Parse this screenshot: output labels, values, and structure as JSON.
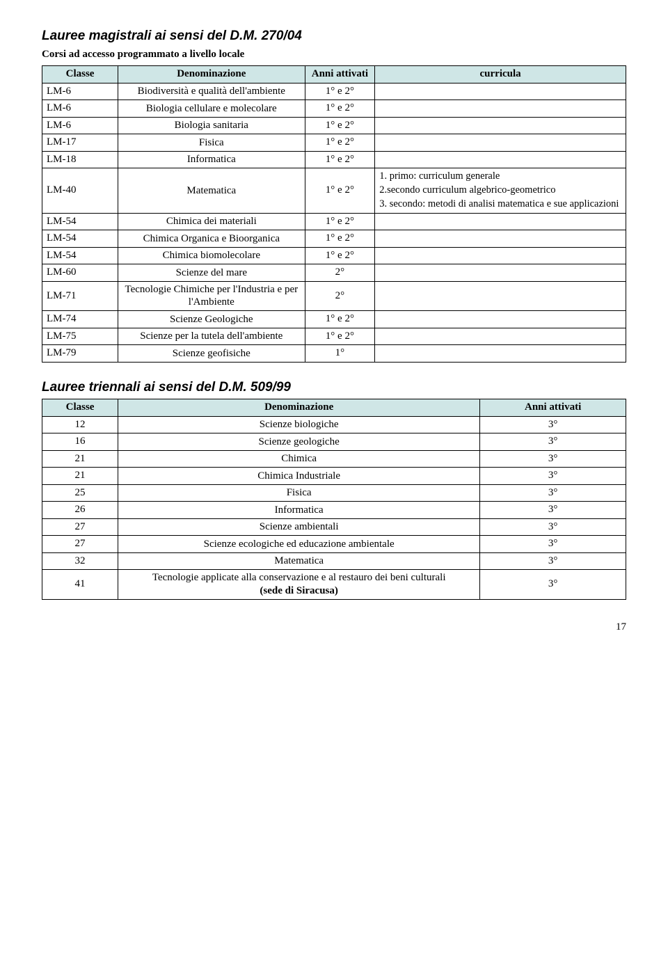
{
  "heading1": "Lauree magistrali ai sensi del D.M. 270/04",
  "subheading1": "Corsi ad accesso programmato a livello locale",
  "table1": {
    "headers": {
      "classe": "Classe",
      "denom": "Denominazione",
      "anni": "Anni attivati",
      "curr": "curricula"
    },
    "rows": [
      {
        "classe": "LM-6",
        "denom": "Biodiversità e qualità dell'ambiente",
        "anni": "1° e 2°",
        "curr": []
      },
      {
        "classe": "LM-6",
        "denom": "Biologia cellulare e molecolare",
        "anni": "1° e 2°",
        "curr": []
      },
      {
        "classe": "LM-6",
        "denom": "Biologia sanitaria",
        "anni": "1° e 2°",
        "curr": []
      },
      {
        "classe": "LM-17",
        "denom": "Fisica",
        "anni": "1° e 2°",
        "curr": []
      },
      {
        "classe": "LM-18",
        "denom": "Informatica",
        "anni": "1° e 2°",
        "curr": []
      },
      {
        "classe": "LM-40",
        "denom": "Matematica",
        "anni": "1° e 2°",
        "curr": [
          "1. primo: curriculum generale",
          "2.secondo  curriculum algebrico-geometrico",
          "3. secondo: metodi di analisi matematica e sue applicazioni"
        ]
      },
      {
        "classe": "LM-54",
        "denom": "Chimica dei materiali",
        "anni": "1° e 2°",
        "curr": []
      },
      {
        "classe": "LM-54",
        "denom": "Chimica Organica e Bioorganica",
        "anni": "1° e 2°",
        "curr": []
      },
      {
        "classe": "LM-54",
        "denom": "Chimica biomolecolare",
        "anni": "1° e 2°",
        "curr": []
      },
      {
        "classe": "LM-60",
        "denom": "Scienze del mare",
        "anni": "2°",
        "curr": []
      },
      {
        "classe": "LM-71",
        "denom": "Tecnologie Chimiche per l'Industria e per l'Ambiente",
        "anni": "2°",
        "curr": []
      },
      {
        "classe": "LM-74",
        "denom": "Scienze Geologiche",
        "anni": "1° e 2°",
        "curr": []
      },
      {
        "classe": "LM-75",
        "denom": "Scienze per la tutela dell'ambiente",
        "anni": "1° e 2°",
        "curr": []
      },
      {
        "classe": "LM-79",
        "denom": "Scienze geofisiche",
        "anni": "1°",
        "curr": []
      }
    ]
  },
  "heading2": "Lauree triennali ai sensi del D.M. 509/99",
  "table2": {
    "headers": {
      "classe": "Classe",
      "denom": "Denominazione",
      "anni": "Anni attivati"
    },
    "rows": [
      {
        "classe": "12",
        "denom": "Scienze biologiche",
        "anni": "3°"
      },
      {
        "classe": "16",
        "denom": "Scienze geologiche",
        "anni": "3°"
      },
      {
        "classe": "21",
        "denom": "Chimica",
        "anni": "3°"
      },
      {
        "classe": "21",
        "denom": "Chimica Industriale",
        "anni": "3°"
      },
      {
        "classe": "25",
        "denom": "Fisica",
        "anni": "3°"
      },
      {
        "classe": "26",
        "denom": "Informatica",
        "anni": "3°"
      },
      {
        "classe": "27",
        "denom": "Scienze ambientali",
        "anni": "3°"
      },
      {
        "classe": "27",
        "denom": "Scienze ecologiche ed educazione ambientale",
        "anni": "3°"
      },
      {
        "classe": "32",
        "denom": "Matematica",
        "anni": "3°"
      },
      {
        "classe": "41",
        "denom_plain": "Tecnologie applicate alla conservazione e al restauro dei beni culturali",
        "denom_bold": "(sede di Siracusa)",
        "anni": "3°"
      }
    ]
  },
  "page_number": "17",
  "colors": {
    "header_bg": "#cfe6e6",
    "border": "#000000",
    "background": "#ffffff"
  }
}
